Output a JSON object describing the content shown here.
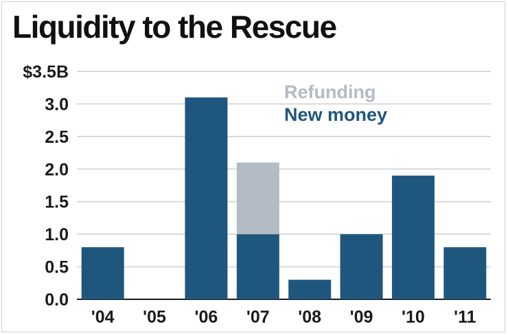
{
  "chart_data": {
    "type": "bar",
    "stacked": true,
    "title": "Liquidity to the Rescue",
    "categories": [
      "'04",
      "'05",
      "'06",
      "'07",
      "'08",
      "'09",
      "'10",
      "'11"
    ],
    "series": [
      {
        "name": "New money",
        "color": "#1f567e",
        "values": [
          0.8,
          0,
          3.1,
          1.0,
          0.3,
          1.0,
          1.9,
          0.8
        ]
      },
      {
        "name": "Refunding",
        "color": "#b3bcc4",
        "values": [
          0,
          0,
          0,
          1.1,
          0,
          0,
          0,
          0
        ]
      }
    ],
    "yticks": [
      "0.0",
      "0.5",
      "1.0",
      "1.5",
      "2.0",
      "2.5",
      "3.0",
      "$3.5B"
    ],
    "ylim": [
      0,
      3.5
    ],
    "grid": true,
    "legend_position": "top-center"
  }
}
